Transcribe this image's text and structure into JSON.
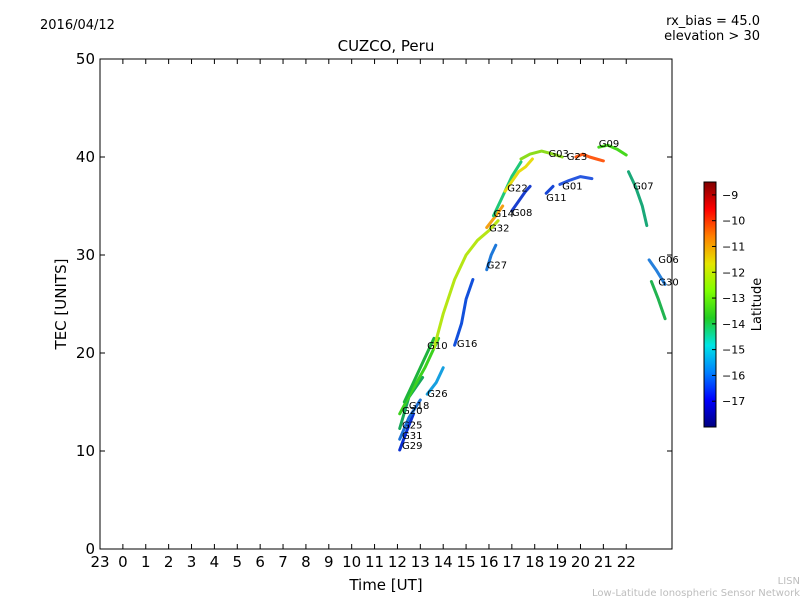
{
  "header": {
    "date": "2016/04/12",
    "title": "CUZCO, Peru",
    "rx_bias": "rx_bias = 45.0",
    "elevation": "elevation > 30"
  },
  "footer": {
    "line1": "LISN",
    "line2": "Low-Latitude Ionospheric Sensor Network"
  },
  "chart_data": {
    "type": "line",
    "title": "CUZCO, Peru",
    "xlabel": "Time [UT]",
    "ylabel": "TEC [UNITS]",
    "xlim": [
      -1,
      24
    ],
    "ylim": [
      0,
      50
    ],
    "x_ticks": [
      -1,
      0,
      1,
      2,
      3,
      4,
      5,
      6,
      7,
      8,
      9,
      10,
      11,
      12,
      13,
      14,
      15,
      16,
      17,
      18,
      19,
      20,
      21,
      22
    ],
    "x_tick_labels": [
      "23",
      "0",
      "1",
      "2",
      "3",
      "4",
      "5",
      "6",
      "7",
      "8",
      "9",
      "10",
      "11",
      "12",
      "13",
      "14",
      "15",
      "16",
      "17",
      "18",
      "19",
      "20",
      "21",
      "22"
    ],
    "y_ticks": [
      0,
      10,
      20,
      30,
      40,
      50
    ],
    "colorbar": {
      "label": "Latitude",
      "range": [
        -18,
        -8.5
      ],
      "ticks": [
        -9,
        -10,
        -11,
        -12,
        -13,
        -14,
        -15,
        -16,
        -17
      ],
      "colors": [
        "#00007f",
        "#0000ff",
        "#0080ff",
        "#00e5e5",
        "#22cc22",
        "#7fff00",
        "#e5e500",
        "#ff8000",
        "#ff0000",
        "#7f0000"
      ]
    },
    "series": [
      {
        "name": "G29",
        "color": "#0a2fd0",
        "x": [
          12.1,
          12.4,
          12.7
        ],
        "y": [
          10.1,
          12.0,
          13.8
        ]
      },
      {
        "name": "G31",
        "color": "#1b6fd6",
        "x": [
          12.1,
          12.5,
          13.0
        ],
        "y": [
          11.2,
          13.4,
          15.2
        ]
      },
      {
        "name": "G25",
        "color": "#17a65a",
        "x": [
          12.1,
          12.5,
          13.1
        ],
        "y": [
          12.3,
          15.5,
          17.5
        ]
      },
      {
        "name": "G20",
        "color": "#3cd21e",
        "x": [
          12.1,
          12.6,
          13.2,
          13.8
        ],
        "y": [
          13.8,
          16.0,
          18.5,
          21.5
        ]
      },
      {
        "name": "G18",
        "color": "#1eb43c",
        "x": [
          12.3,
          12.7,
          13.1,
          13.6
        ],
        "y": [
          15.0,
          17.0,
          19.0,
          21.5
        ]
      },
      {
        "name": "G26",
        "color": "#16a0e0",
        "x": [
          13.3,
          13.7,
          14.0
        ],
        "y": [
          15.8,
          17.0,
          18.5
        ]
      },
      {
        "name": "G10",
        "color": "#b6e614",
        "x": [
          13.6,
          14.0,
          14.5,
          15.0,
          15.5,
          16.0,
          16.4
        ],
        "y": [
          20.5,
          24.0,
          27.5,
          30.0,
          31.5,
          32.5,
          33.5
        ]
      },
      {
        "name": "G16",
        "color": "#1250dc",
        "x": [
          14.5,
          14.8,
          15.0,
          15.3
        ],
        "y": [
          20.8,
          23.0,
          25.5,
          27.5
        ]
      },
      {
        "name": "G27",
        "color": "#1d78da",
        "x": [
          15.9,
          16.1,
          16.3
        ],
        "y": [
          28.5,
          30.0,
          31.0
        ]
      },
      {
        "name": "G32",
        "color": "#f4a114",
        "x": [
          15.9,
          16.3,
          16.6
        ],
        "y": [
          32.8,
          34.0,
          35.0
        ]
      },
      {
        "name": "G14",
        "color": "#20c878",
        "x": [
          16.2,
          16.6,
          17.0,
          17.4
        ],
        "y": [
          34.0,
          36.0,
          38.0,
          39.5
        ]
      },
      {
        "name": "G08",
        "color": "#1a3fd0",
        "x": [
          17.0,
          17.3,
          17.6,
          17.8
        ],
        "y": [
          34.5,
          35.5,
          36.5,
          37.0
        ]
      },
      {
        "name": "G22",
        "color": "#e8dc10",
        "x": [
          16.7,
          17.0,
          17.3,
          17.6,
          17.9
        ],
        "y": [
          36.5,
          37.5,
          38.5,
          39.0,
          39.8
        ]
      },
      {
        "name": "G11",
        "color": "#1646d6",
        "x": [
          18.5,
          18.8
        ],
        "y": [
          36.3,
          37.0
        ]
      },
      {
        "name": "G01",
        "color": "#2858e0",
        "x": [
          19.1,
          19.5,
          20.0,
          20.5
        ],
        "y": [
          37.2,
          37.6,
          38.0,
          37.8
        ]
      },
      {
        "name": "G03",
        "color": "#8cdc1c",
        "x": [
          17.4,
          17.8,
          18.3,
          18.8,
          19.2
        ],
        "y": [
          39.8,
          40.3,
          40.6,
          40.3,
          40.0
        ]
      },
      {
        "name": "G23",
        "color": "#ff5a14",
        "x": [
          19.8,
          20.1,
          20.4,
          20.7,
          21.0
        ],
        "y": [
          40.0,
          40.3,
          40.0,
          39.8,
          39.6
        ]
      },
      {
        "name": "G09",
        "color": "#46d81e",
        "x": [
          20.8,
          21.2,
          21.6,
          22.0
        ],
        "y": [
          41.0,
          41.2,
          40.8,
          40.2
        ]
      },
      {
        "name": "G07",
        "color": "#1aa878",
        "x": [
          22.1,
          22.4,
          22.7,
          22.9
        ],
        "y": [
          38.5,
          37.0,
          35.0,
          33.0
        ]
      },
      {
        "name": "G06",
        "color": "#2680dc",
        "x": [
          23.0,
          23.3,
          23.7
        ],
        "y": [
          29.5,
          28.5,
          27.0
        ]
      },
      {
        "name": "G30",
        "color": "#22b450",
        "x": [
          23.1,
          23.4,
          23.7
        ],
        "y": [
          27.3,
          25.5,
          23.5
        ]
      }
    ],
    "satellite_labels": [
      {
        "label": "G29",
        "x": 12.2,
        "y": 10.2
      },
      {
        "label": "G31",
        "x": 12.2,
        "y": 11.2
      },
      {
        "label": "G25",
        "x": 12.2,
        "y": 12.3
      },
      {
        "label": "G20",
        "x": 12.2,
        "y": 13.8
      },
      {
        "label": "G18",
        "x": 12.5,
        "y": 14.3
      },
      {
        "label": "G26",
        "x": 13.3,
        "y": 15.5
      },
      {
        "label": "G10",
        "x": 13.3,
        "y": 20.4
      },
      {
        "label": "G16",
        "x": 14.6,
        "y": 20.6
      },
      {
        "label": "G27",
        "x": 15.9,
        "y": 28.6
      },
      {
        "label": "G32",
        "x": 16.0,
        "y": 32.4
      },
      {
        "label": "G14",
        "x": 16.2,
        "y": 33.9
      },
      {
        "label": "G08",
        "x": 17.0,
        "y": 34.0
      },
      {
        "label": "G22",
        "x": 16.8,
        "y": 36.5
      },
      {
        "label": "G11",
        "x": 18.5,
        "y": 35.5
      },
      {
        "label": "G01",
        "x": 19.2,
        "y": 36.7
      },
      {
        "label": "G03",
        "x": 18.6,
        "y": 40.0
      },
      {
        "label": "G23",
        "x": 19.4,
        "y": 39.7
      },
      {
        "label": "G09",
        "x": 20.8,
        "y": 41.0
      },
      {
        "label": "G07",
        "x": 22.3,
        "y": 36.7
      },
      {
        "label": "G06",
        "x": 23.4,
        "y": 29.2
      },
      {
        "label": "G30",
        "x": 23.4,
        "y": 26.9
      }
    ]
  }
}
